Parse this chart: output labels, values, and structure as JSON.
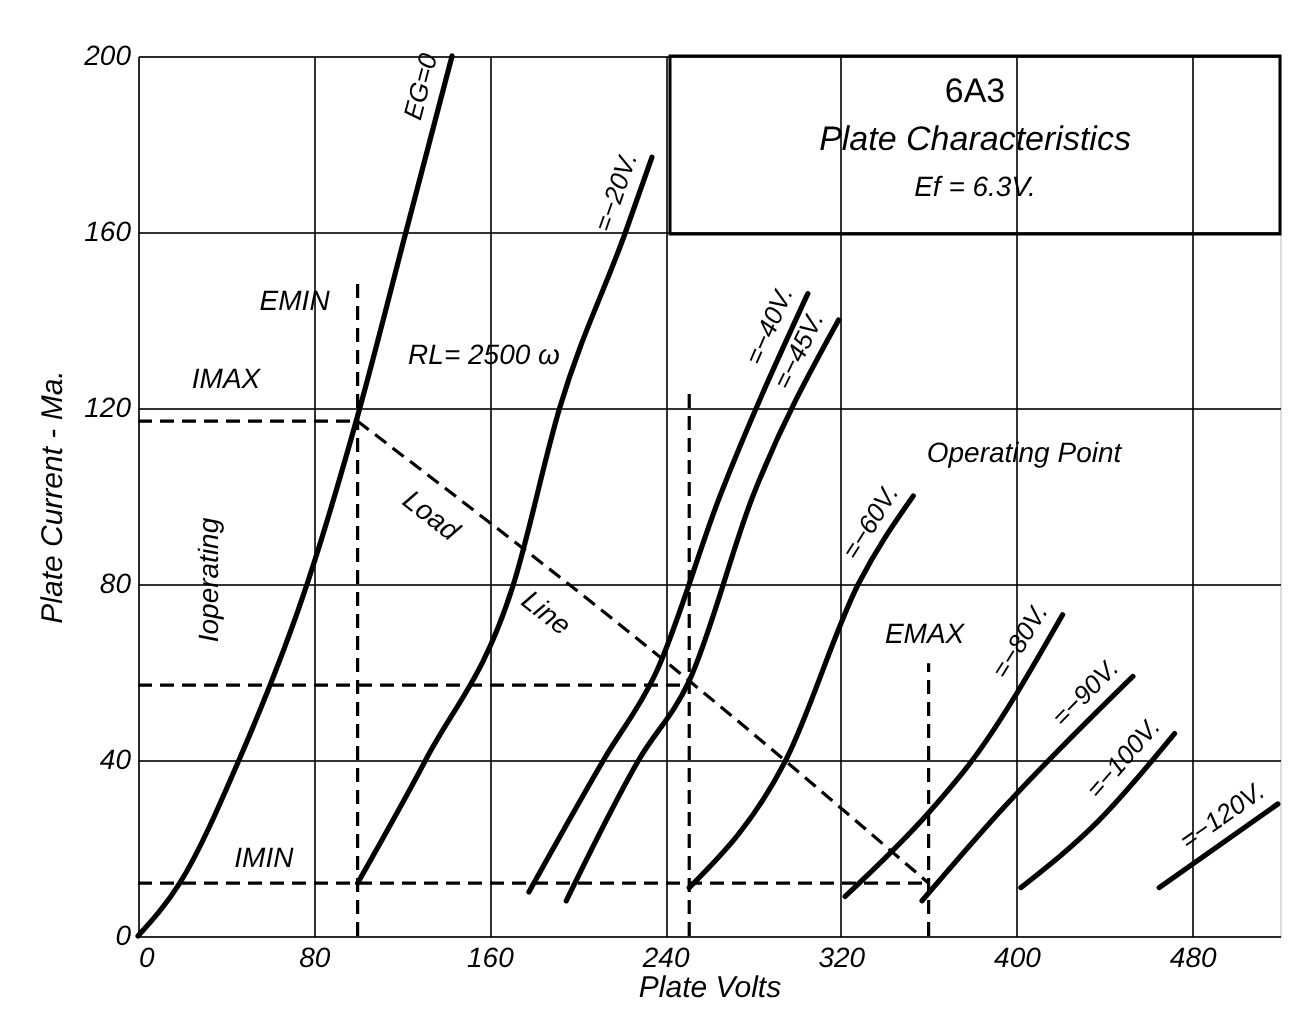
{
  "chart_data": {
    "type": "line",
    "title": "6A3",
    "subtitle": "Plate Characteristics",
    "xlabel": "Plate Volts",
    "ylabel": "Plate Current - Ma.",
    "xlim": [
      0,
      520
    ],
    "ylim": [
      0,
      200
    ],
    "xticks": [
      0,
      80,
      160,
      240,
      320,
      400,
      480
    ],
    "yticks": [
      0,
      40,
      80,
      120,
      160,
      200
    ],
    "grid": true,
    "series": [
      {
        "name": "EG=0",
        "color": "#000000",
        "x": [
          0,
          19,
          46,
          77,
          101,
          122,
          143
        ],
        "values": [
          0,
          12,
          40,
          80,
          120,
          160,
          200
        ]
      },
      {
        "name": "=−20V.",
        "color": "#000000",
        "x": [
          100,
          131,
          171,
          192,
          222,
          234
        ],
        "values": [
          12,
          40,
          80,
          120,
          160,
          177
        ]
      },
      {
        "name": "=−40V.",
        "color": "#000000",
        "x": [
          178,
          212,
          236,
          265,
          305
        ],
        "values": [
          10,
          40,
          60,
          100,
          146
        ]
      },
      {
        "name": "=−45V.",
        "color": "#000000",
        "x": [
          195,
          228,
          251,
          280,
          319
        ],
        "values": [
          8,
          40,
          58,
          100,
          140
        ]
      },
      {
        "name": "=−60V.",
        "color": "#000000",
        "x": [
          251,
          295,
          328,
          353
        ],
        "values": [
          11,
          40,
          80,
          100
        ]
      },
      {
        "name": "=−80V.",
        "color": "#000000",
        "x": [
          322,
          360,
          380,
          421
        ],
        "values": [
          9,
          28,
          40,
          73
        ]
      },
      {
        "name": "=−90V.",
        "color": "#000000",
        "x": [
          357,
          392,
          453
        ],
        "values": [
          8,
          28,
          59
        ]
      },
      {
        "name": "=−100V.",
        "color": "#000000",
        "x": [
          402,
          437,
          472
        ],
        "values": [
          11,
          26,
          46
        ]
      },
      {
        "name": "=−120V.",
        "color": "#000000",
        "x": [
          465,
          519
        ],
        "values": [
          11,
          30
        ]
      },
      {
        "color": "#000000",
        "line_style": "dashed",
        "x": [
          100,
          251,
          360
        ],
        "values": [
          117,
          58,
          12
        ]
      },
      {
        "color": "#000000",
        "line_style": "dashed",
        "x": [
          0,
          100
        ],
        "values": [
          117,
          117
        ]
      },
      {
        "color": "#000000",
        "line_style": "dashed",
        "x": [
          0,
          251
        ],
        "values": [
          57,
          57
        ]
      },
      {
        "color": "#000000",
        "line_style": "dashed",
        "x": [
          0,
          360
        ],
        "values": [
          12,
          12
        ]
      },
      {
        "color": "#000000",
        "line_style": "dashed",
        "x": [
          100,
          100
        ],
        "values": [
          0,
          150
        ]
      },
      {
        "color": "#000000",
        "line_style": "dashed",
        "x": [
          251,
          251
        ],
        "values": [
          0,
          124
        ]
      },
      {
        "color": "#000000",
        "line_style": "dashed",
        "x": [
          360,
          360
        ],
        "values": [
          0,
          62
        ]
      }
    ],
    "annotations": [
      {
        "text": "EMIN",
        "x": 100,
        "y": 145
      },
      {
        "text": "Load",
        "x": 145,
        "y": 100
      },
      {
        "text": "Line",
        "x": 200,
        "y": 78
      },
      {
        "text": "IMIN",
        "x": 30,
        "y": 12
      },
      {
        "text": "EMAX",
        "x": 360,
        "y": 62
      },
      "IMAX",
      "RL= 2500 ω",
      "Operating Point",
      "Ioperating",
      "Ef = 6.3V."
    ]
  }
}
